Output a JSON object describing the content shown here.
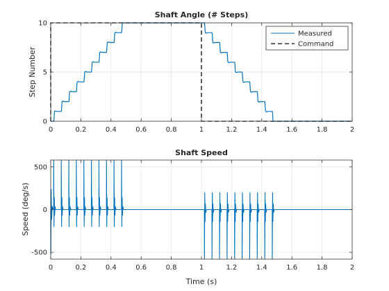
{
  "colors": {
    "measured": "#0072BD",
    "command": "#000000",
    "axis": "#262626",
    "grid": "#e6e6e6"
  },
  "chart_data": [
    {
      "type": "line",
      "title": "Shaft Angle (# Steps)",
      "xlabel": "",
      "ylabel": "Step Number",
      "xlim": [
        0,
        2
      ],
      "ylim": [
        0,
        10
      ],
      "xticks": [
        0,
        0.2,
        0.4,
        0.6,
        0.8,
        1,
        1.2,
        1.4,
        1.6,
        1.8,
        2
      ],
      "xtick_labels": [
        "0",
        "0.2",
        "0.4",
        "0.6",
        "0.8",
        "1",
        "1.2",
        "1.4",
        "1.6",
        "1.8",
        "2"
      ],
      "yticks": [
        0,
        5,
        10
      ],
      "ytick_labels": [
        "0",
        "5",
        "10"
      ],
      "grid": true,
      "legend_location": "top-right",
      "series": [
        {
          "name": "Measured",
          "style": "solid",
          "step_times_up": [
            0.02,
            0.07,
            0.12,
            0.17,
            0.22,
            0.27,
            0.32,
            0.37,
            0.42,
            0.47
          ],
          "step_times_down": [
            1.02,
            1.07,
            1.12,
            1.17,
            1.22,
            1.27,
            1.32,
            1.37,
            1.42,
            1.47
          ],
          "x": [
            0,
            0.02,
            0.5,
            1,
            1.02,
            1.5,
            2
          ],
          "y": [
            0,
            0,
            10,
            10,
            10,
            0,
            0
          ]
        },
        {
          "name": "Command",
          "style": "dashed",
          "x": [
            0,
            0,
            1,
            1,
            2
          ],
          "y": [
            0,
            10,
            10,
            0,
            0
          ]
        }
      ]
    },
    {
      "type": "line",
      "title": "Shaft Speed",
      "xlabel": "Time (s)",
      "ylabel": "Speed (deg/s)",
      "xlim": [
        0,
        2
      ],
      "ylim": [
        -580,
        580
      ],
      "xticks": [
        0,
        0.2,
        0.4,
        0.6,
        0.8,
        1,
        1.2,
        1.4,
        1.6,
        1.8,
        2
      ],
      "xtick_labels": [
        "0",
        "0.2",
        "0.4",
        "0.6",
        "0.8",
        "1",
        "1.2",
        "1.4",
        "1.6",
        "1.8",
        "2"
      ],
      "yticks": [
        -500,
        0,
        500
      ],
      "ytick_labels": [
        "-500",
        "0",
        "500"
      ],
      "grid": true,
      "series": [
        {
          "style": "solid",
          "spike_times_positive": [
            0.02,
            0.07,
            0.12,
            0.17,
            0.22,
            0.27,
            0.32,
            0.37,
            0.42,
            0.47
          ],
          "spike_times_negative": [
            1.02,
            1.07,
            1.12,
            1.17,
            1.22,
            1.27,
            1.32,
            1.37,
            1.42,
            1.47
          ],
          "spike_peak": 580,
          "baseline": 0
        }
      ]
    }
  ]
}
